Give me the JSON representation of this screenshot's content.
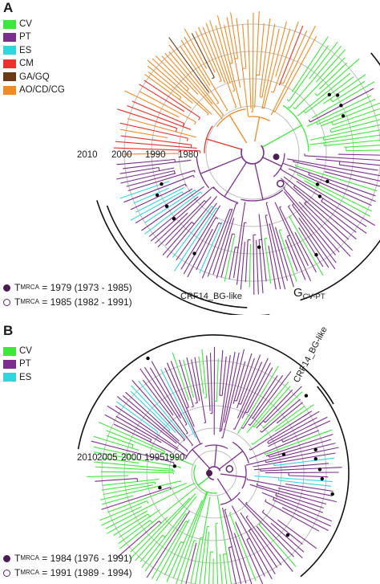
{
  "panels": [
    {
      "letter": "A",
      "legend": [
        {
          "label": "CV",
          "color": "#3de83a"
        },
        {
          "label": "PT",
          "color": "#7b2e8c"
        },
        {
          "label": "ES",
          "color": "#2fd6e0"
        },
        {
          "label": "CM",
          "color": "#e8322b"
        },
        {
          "label": "GA/GQ",
          "color": "#6b3a14"
        },
        {
          "label": "AO/CD/CG",
          "color": "#f08a24"
        }
      ],
      "year_labels": [
        "2010",
        "2000",
        "1990",
        "1980"
      ],
      "clade_label": "CRF14_BG-like",
      "group_label": {
        "main": "G",
        "sub": "CV-PT"
      },
      "tmrca_label": "T",
      "tmrca_sub": "MRCA",
      "tmrca": [
        {
          "type": "filled",
          "text": "= 1979 (1973 - 1985)"
        },
        {
          "type": "open",
          "text": "= 1985 (1982 - 1991)"
        }
      ]
    },
    {
      "letter": "B",
      "legend": [
        {
          "label": "CV",
          "color": "#3de83a"
        },
        {
          "label": "PT",
          "color": "#7b2e8c"
        },
        {
          "label": "ES",
          "color": "#2fd6e0"
        }
      ],
      "year_labels": [
        "2010",
        "2005",
        "2000",
        "1995",
        "1990"
      ],
      "clade_label": "CRF14_BG-like",
      "tmrca_label": "T",
      "tmrca_sub": "MRCA",
      "tmrca": [
        {
          "type": "filled",
          "text": "= 1984 (1976 - 1991)"
        },
        {
          "type": "open",
          "text": "= 1991 (1989 - 1994)"
        }
      ]
    }
  ]
}
